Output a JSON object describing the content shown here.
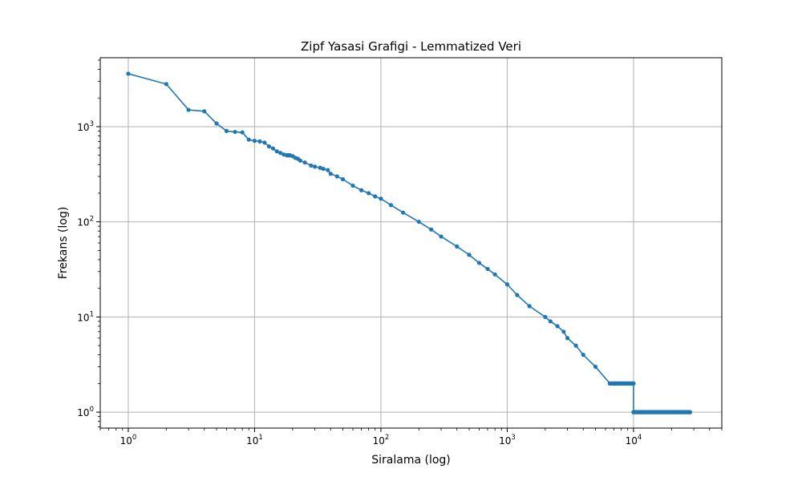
{
  "chart_data": {
    "type": "line",
    "title": "Zipf Yasasi Grafigi - Lemmatized Veri",
    "xlabel": "Siralama (log)",
    "ylabel": "Frekans (log)",
    "xscale": "log",
    "yscale": "log",
    "xlim": [
      0.6,
      50000
    ],
    "ylim": [
      0.68,
      5300
    ],
    "grid": true,
    "xticks": [
      {
        "base": "10",
        "exp": "0"
      },
      {
        "base": "10",
        "exp": "1"
      },
      {
        "base": "10",
        "exp": "2"
      },
      {
        "base": "10",
        "exp": "3"
      },
      {
        "base": "10",
        "exp": "4"
      }
    ],
    "yticks": [
      {
        "base": "10",
        "exp": "0"
      },
      {
        "base": "10",
        "exp": "1"
      },
      {
        "base": "10",
        "exp": "2"
      },
      {
        "base": "10",
        "exp": "3"
      }
    ],
    "colors": {
      "series": "#1f77b4",
      "grid": "#b0b0b0"
    },
    "series": [
      {
        "x": [
          1,
          2,
          3,
          4,
          5,
          6,
          7,
          8,
          9,
          10,
          11,
          12,
          13,
          14,
          15,
          16,
          17,
          18,
          19,
          20,
          21,
          22,
          23,
          25,
          28,
          30,
          33,
          35,
          38,
          40,
          45,
          50,
          60,
          70,
          80,
          90,
          100,
          120,
          150,
          200,
          250,
          300,
          400,
          500,
          600,
          700,
          800,
          1000,
          1200,
          1500,
          2000,
          2200,
          2500,
          2800,
          3000,
          3500,
          4000,
          5000,
          6500,
          10000,
          10000,
          28000
        ],
        "y": [
          3600,
          2800,
          1500,
          1450,
          1080,
          900,
          880,
          870,
          730,
          710,
          700,
          680,
          620,
          590,
          550,
          530,
          510,
          500,
          500,
          490,
          470,
          460,
          440,
          420,
          390,
          380,
          370,
          360,
          350,
          320,
          300,
          280,
          240,
          215,
          200,
          185,
          175,
          150,
          125,
          100,
          83,
          70,
          55,
          45,
          37,
          32,
          28,
          22,
          17,
          13,
          10,
          9,
          8,
          7,
          6,
          5,
          4,
          3,
          2,
          2,
          1,
          1
        ]
      }
    ]
  }
}
